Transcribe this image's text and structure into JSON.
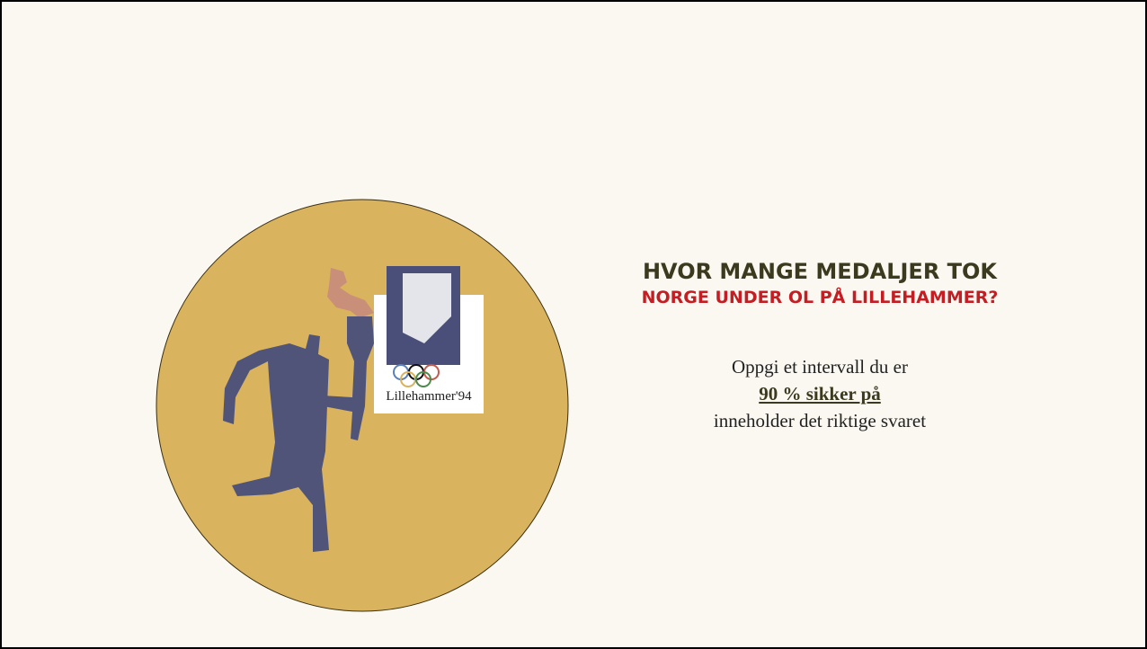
{
  "heading": {
    "line1": "HVOR MANGE MEDALJER TOK",
    "line2": "NORGE UNDER OL PÅ LILLEHAMMER?"
  },
  "body": {
    "line1": "Oppgi et intervall du er",
    "emphasis": "90 % sikker på",
    "line3": "inneholder det riktige svaret"
  },
  "logo": {
    "text": "Lillehammer'94"
  }
}
